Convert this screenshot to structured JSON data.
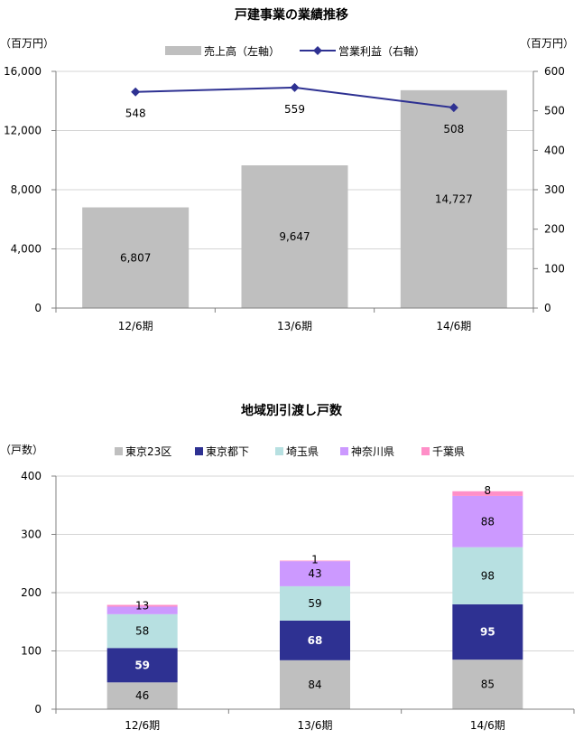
{
  "chart_data": [
    {
      "type": "bar",
      "title": "戸建事業の業績推移",
      "categories": [
        "12/6期",
        "13/6期",
        "14/6期"
      ],
      "ylabel_left": "（百万円）",
      "ylabel_right": "（百万円）",
      "ylim_left": [
        0,
        16000
      ],
      "ylim_right": [
        0,
        600
      ],
      "yticks_left": [
        "0",
        "4,000",
        "8,000",
        "12,000",
        "16,000"
      ],
      "yticks_right": [
        "0",
        "100",
        "200",
        "300",
        "400",
        "500",
        "600"
      ],
      "grid": true,
      "legend_position": "top-center",
      "series": [
        {
          "name": "売上高（左軸）",
          "type": "bar",
          "axis": "left",
          "color": "#bfbfbf",
          "values": [
            6807,
            9647,
            14727
          ],
          "labels": [
            "6,807",
            "9,647",
            "14,727"
          ]
        },
        {
          "name": "営業利益（右軸）",
          "type": "line",
          "axis": "right",
          "color": "#2e3192",
          "values": [
            548,
            559,
            508
          ],
          "labels": [
            "548",
            "559",
            "508"
          ]
        }
      ]
    },
    {
      "type": "bar",
      "stacked": true,
      "title": "地域別引渡し戸数",
      "categories": [
        "12/6期",
        "13/6期",
        "14/6期"
      ],
      "ylabel": "（戸数）",
      "ylim": [
        0,
        400
      ],
      "yticks": [
        "0",
        "100",
        "200",
        "300",
        "400"
      ],
      "grid": true,
      "legend_position": "top-center",
      "series": [
        {
          "name": "東京23区",
          "color": "#bfbfbf",
          "label_color": "#000000",
          "values": [
            46,
            84,
            85
          ]
        },
        {
          "name": "東京都下",
          "color": "#2e3192",
          "label_color": "#ffffff",
          "values": [
            59,
            68,
            95
          ]
        },
        {
          "name": "埼玉県",
          "color": "#b7e0e1",
          "label_color": "#000000",
          "values": [
            58,
            59,
            98
          ]
        },
        {
          "name": "神奈川県",
          "color": "#cc99ff",
          "label_color": "#000000",
          "values": [
            13,
            43,
            88
          ]
        },
        {
          "name": "千葉県",
          "color": "#ff8fc8",
          "label_color": "#000000",
          "values": [
            3,
            1,
            8
          ],
          "labels": [
            "",
            "1",
            "8"
          ]
        }
      ]
    }
  ]
}
